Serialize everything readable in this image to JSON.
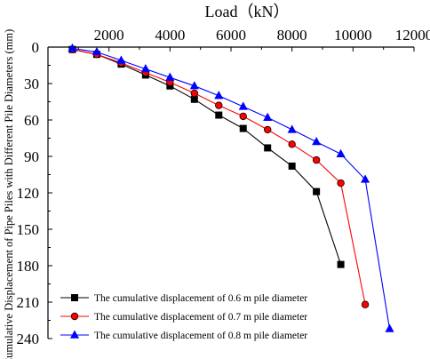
{
  "chart_data": {
    "type": "line",
    "xlabel": "Load（kN）",
    "ylabel": "Cumulative Displacement of Pipe Piles with Different Pile Diameters (mm)",
    "xlim": [
      0,
      12000
    ],
    "ylim": [
      0,
      240
    ],
    "y_inverted": true,
    "x_axis_position": "top",
    "xticks": [
      2000,
      4000,
      6000,
      8000,
      10000,
      12000
    ],
    "yticks": [
      0,
      30,
      60,
      90,
      120,
      150,
      180,
      210,
      240
    ],
    "xtick_labels": [
      "2000",
      "4000",
      "6000",
      "8000",
      "10000",
      "12000"
    ],
    "ytick_labels": [
      "0",
      "30",
      "60",
      "90",
      "120",
      "150",
      "180",
      "210",
      "240"
    ],
    "grid": false,
    "legend_position": "bottom-left",
    "series": [
      {
        "name": "The cumulative displacement of 0.6 m pile diameter",
        "color": "#000000",
        "marker": "square",
        "x": [
          800,
          1600,
          2400,
          3200,
          4000,
          4800,
          5600,
          6400,
          7200,
          8000,
          8800,
          9600
        ],
        "y": [
          2,
          6,
          14,
          23,
          32,
          43,
          56,
          67,
          83,
          98,
          119,
          179
        ]
      },
      {
        "name": "The cumulative displacement of 0.7 m pile diameter",
        "color": "#ff0000",
        "marker": "circle",
        "x": [
          800,
          1600,
          2400,
          3200,
          4000,
          4800,
          5600,
          6400,
          7200,
          8000,
          8800,
          9600,
          10400
        ],
        "y": [
          2,
          6,
          13,
          21,
          29,
          38,
          48,
          57,
          68,
          80,
          93,
          112,
          212
        ]
      },
      {
        "name": "The cumulative displacement of 0.8 m pile diameter",
        "color": "#0000ff",
        "marker": "triangle",
        "x": [
          800,
          1600,
          2400,
          3200,
          4000,
          4800,
          5600,
          6400,
          7200,
          8000,
          8800,
          9600,
          10400,
          11200
        ],
        "y": [
          1,
          4,
          11,
          18,
          25,
          32,
          40,
          49,
          58,
          68,
          78,
          88,
          109,
          232
        ]
      }
    ]
  }
}
